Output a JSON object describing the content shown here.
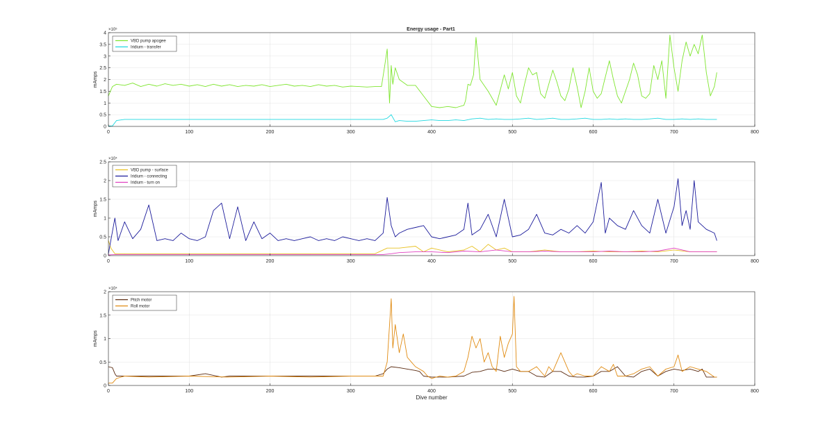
{
  "figure": {
    "title": "Energy usage - Part1"
  },
  "chart_data": [
    {
      "type": "line",
      "title": "Energy usage - Part1",
      "xlabel": "",
      "ylabel": "mAmps",
      "multiplier_label": "×10⁵",
      "xlim": [
        0,
        800
      ],
      "ylim": [
        0,
        4
      ],
      "xticks": [
        0,
        100,
        200,
        300,
        400,
        500,
        600,
        700,
        800
      ],
      "yticks": [
        0,
        0.5,
        1,
        1.5,
        2,
        2.5,
        3,
        3.5,
        4
      ],
      "ytick_labels": [
        "0",
        "0.5",
        "1",
        "1.5",
        "2",
        "2.5",
        "3",
        "3.5",
        "4"
      ],
      "grid": true,
      "legend": "top-left",
      "series": [
        {
          "name": "VBD pump apogee",
          "color": "#7ee52e",
          "x": [
            0,
            5,
            10,
            20,
            30,
            40,
            50,
            60,
            70,
            80,
            90,
            100,
            110,
            120,
            130,
            140,
            150,
            160,
            170,
            180,
            190,
            200,
            210,
            220,
            230,
            240,
            250,
            260,
            270,
            280,
            290,
            300,
            310,
            320,
            330,
            338,
            342,
            345,
            348,
            350,
            352,
            355,
            360,
            370,
            380,
            390,
            400,
            410,
            420,
            430,
            440,
            442,
            445,
            448,
            452,
            455,
            460,
            470,
            480,
            490,
            495,
            500,
            505,
            510,
            515,
            520,
            525,
            530,
            535,
            540,
            545,
            550,
            555,
            560,
            565,
            570,
            575,
            580,
            585,
            590,
            595,
            600,
            605,
            610,
            615,
            620,
            625,
            630,
            635,
            640,
            645,
            650,
            655,
            660,
            665,
            670,
            675,
            680,
            685,
            690,
            695,
            700,
            705,
            710,
            715,
            720,
            725,
            730,
            735,
            740,
            745,
            750,
            753
          ],
          "y": [
            1.3,
            1.7,
            1.8,
            1.75,
            1.85,
            1.7,
            1.8,
            1.72,
            1.82,
            1.75,
            1.8,
            1.72,
            1.78,
            1.7,
            1.8,
            1.72,
            1.78,
            1.7,
            1.75,
            1.72,
            1.78,
            1.7,
            1.75,
            1.8,
            1.72,
            1.75,
            1.7,
            1.78,
            1.72,
            1.75,
            1.68,
            1.72,
            1.7,
            1.68,
            1.7,
            1.7,
            2.6,
            3.3,
            1.0,
            2.6,
            1.8,
            2.5,
            2.0,
            1.75,
            1.75,
            1.3,
            0.85,
            0.8,
            0.85,
            0.8,
            0.9,
            1.1,
            1.8,
            1.75,
            2.2,
            3.8,
            2.0,
            1.5,
            0.9,
            2.2,
            1.6,
            2.3,
            1.3,
            1.0,
            1.8,
            2.5,
            2.2,
            2.3,
            1.4,
            1.2,
            1.8,
            2.4,
            1.9,
            1.3,
            1.1,
            1.6,
            2.5,
            1.7,
            0.8,
            1.5,
            2.5,
            1.5,
            1.2,
            1.4,
            2.1,
            2.8,
            2.0,
            1.3,
            1.0,
            1.5,
            2.0,
            2.7,
            2.2,
            1.3,
            1.2,
            1.4,
            2.6,
            2.0,
            2.8,
            1.2,
            3.9,
            2.5,
            1.5,
            2.8,
            3.6,
            3.0,
            3.5,
            3.1,
            3.9,
            2.3,
            1.3,
            1.7,
            2.3
          ]
        },
        {
          "name": "Iridium - transfer",
          "color": "#1fd8e0",
          "x": [
            0,
            5,
            10,
            20,
            30,
            40,
            50,
            60,
            70,
            80,
            90,
            100,
            110,
            120,
            130,
            140,
            150,
            160,
            170,
            180,
            190,
            200,
            210,
            220,
            230,
            240,
            250,
            260,
            270,
            280,
            290,
            300,
            310,
            320,
            330,
            340,
            345,
            350,
            355,
            360,
            370,
            380,
            390,
            400,
            410,
            420,
            430,
            440,
            450,
            460,
            470,
            480,
            490,
            500,
            510,
            520,
            530,
            540,
            550,
            560,
            570,
            580,
            590,
            600,
            610,
            620,
            630,
            640,
            650,
            660,
            670,
            680,
            690,
            700,
            710,
            720,
            730,
            740,
            750,
            753
          ],
          "y": [
            0.02,
            0.02,
            0.25,
            0.3,
            0.3,
            0.3,
            0.3,
            0.3,
            0.3,
            0.3,
            0.3,
            0.3,
            0.3,
            0.3,
            0.3,
            0.3,
            0.3,
            0.3,
            0.3,
            0.3,
            0.3,
            0.3,
            0.3,
            0.3,
            0.3,
            0.3,
            0.3,
            0.3,
            0.3,
            0.3,
            0.3,
            0.3,
            0.3,
            0.3,
            0.3,
            0.3,
            0.35,
            0.5,
            0.2,
            0.25,
            0.22,
            0.22,
            0.25,
            0.28,
            0.25,
            0.25,
            0.28,
            0.25,
            0.32,
            0.35,
            0.3,
            0.32,
            0.3,
            0.3,
            0.32,
            0.35,
            0.3,
            0.32,
            0.35,
            0.3,
            0.3,
            0.32,
            0.35,
            0.3,
            0.3,
            0.32,
            0.3,
            0.32,
            0.3,
            0.3,
            0.32,
            0.35,
            0.3,
            0.3,
            0.32,
            0.3,
            0.32,
            0.3,
            0.3,
            0.3
          ]
        }
      ]
    },
    {
      "type": "line",
      "title": "",
      "xlabel": "",
      "ylabel": "mAmps",
      "multiplier_label": "×10⁴",
      "xlim": [
        0,
        800
      ],
      "ylim": [
        0,
        2.5
      ],
      "xticks": [
        0,
        100,
        200,
        300,
        400,
        500,
        600,
        700,
        800
      ],
      "yticks": [
        0,
        0.5,
        1,
        1.5,
        2,
        2.5
      ],
      "ytick_labels": [
        "0",
        "0.5",
        "1",
        "1.5",
        "2",
        "2.5"
      ],
      "grid": true,
      "legend": "top-left",
      "series": [
        {
          "name": "VBD pump - surface",
          "color": "#e8c020",
          "x": [
            0,
            3,
            8,
            20,
            50,
            100,
            150,
            200,
            250,
            300,
            330,
            345,
            360,
            380,
            390,
            400,
            420,
            440,
            450,
            460,
            470,
            480,
            490,
            500,
            520,
            540,
            560,
            580,
            600,
            620,
            640,
            660,
            680,
            700,
            720,
            740,
            753
          ],
          "y": [
            0.4,
            0.2,
            0.05,
            0.05,
            0.05,
            0.05,
            0.05,
            0.05,
            0.05,
            0.05,
            0.05,
            0.2,
            0.2,
            0.25,
            0.1,
            0.2,
            0.1,
            0.15,
            0.25,
            0.1,
            0.3,
            0.15,
            0.2,
            0.1,
            0.1,
            0.15,
            0.1,
            0.1,
            0.12,
            0.1,
            0.1,
            0.12,
            0.1,
            0.15,
            0.1,
            0.1,
            0.1
          ]
        },
        {
          "name": "Iridium - connecting",
          "color": "#1a1a9a",
          "x": [
            0,
            8,
            12,
            20,
            30,
            40,
            50,
            60,
            70,
            80,
            90,
            100,
            110,
            120,
            130,
            140,
            150,
            160,
            170,
            180,
            190,
            200,
            210,
            220,
            230,
            240,
            250,
            260,
            270,
            280,
            290,
            300,
            310,
            320,
            330,
            340,
            345,
            350,
            355,
            360,
            370,
            380,
            390,
            400,
            410,
            420,
            430,
            440,
            445,
            450,
            460,
            470,
            480,
            490,
            500,
            510,
            520,
            530,
            540,
            550,
            560,
            570,
            580,
            590,
            600,
            610,
            615,
            620,
            630,
            640,
            650,
            660,
            670,
            680,
            690,
            700,
            705,
            710,
            715,
            720,
            725,
            730,
            740,
            750,
            753
          ],
          "y": [
            0.05,
            1.0,
            0.4,
            0.9,
            0.45,
            0.7,
            1.35,
            0.4,
            0.45,
            0.4,
            0.6,
            0.45,
            0.4,
            0.5,
            1.2,
            1.4,
            0.45,
            1.3,
            0.4,
            0.9,
            0.45,
            0.6,
            0.4,
            0.45,
            0.4,
            0.45,
            0.5,
            0.4,
            0.45,
            0.4,
            0.5,
            0.45,
            0.4,
            0.45,
            0.4,
            0.6,
            1.55,
            0.8,
            0.5,
            0.6,
            0.7,
            0.75,
            0.8,
            0.5,
            0.45,
            0.5,
            0.55,
            0.7,
            1.4,
            0.55,
            0.7,
            1.1,
            0.5,
            1.5,
            0.5,
            0.55,
            0.7,
            1.1,
            0.6,
            0.55,
            0.7,
            0.6,
            0.8,
            0.6,
            0.9,
            1.95,
            0.6,
            1.0,
            0.8,
            0.7,
            1.2,
            0.8,
            0.6,
            1.5,
            0.6,
            1.3,
            2.05,
            0.8,
            1.2,
            0.7,
            2.0,
            0.9,
            0.7,
            0.6,
            0.4
          ]
        },
        {
          "name": "Iridium - turn on",
          "color": "#e040c0",
          "x": [
            0,
            10,
            50,
            100,
            150,
            200,
            250,
            300,
            340,
            350,
            360,
            380,
            400,
            420,
            440,
            460,
            480,
            500,
            520,
            540,
            560,
            580,
            600,
            620,
            640,
            660,
            680,
            700,
            720,
            740,
            753
          ],
          "y": [
            0.02,
            0.03,
            0.03,
            0.03,
            0.03,
            0.03,
            0.03,
            0.03,
            0.03,
            0.05,
            0.08,
            0.1,
            0.1,
            0.08,
            0.12,
            0.1,
            0.15,
            0.1,
            0.1,
            0.12,
            0.1,
            0.1,
            0.1,
            0.12,
            0.1,
            0.1,
            0.12,
            0.2,
            0.1,
            0.1,
            0.1
          ]
        }
      ]
    },
    {
      "type": "line",
      "title": "",
      "xlabel": "Dive number",
      "ylabel": "mAmps",
      "multiplier_label": "×10⁴",
      "xlim": [
        0,
        800
      ],
      "ylim": [
        0,
        2
      ],
      "xticks": [
        0,
        100,
        200,
        300,
        400,
        500,
        600,
        700,
        800
      ],
      "yticks": [
        0,
        0.5,
        1,
        1.5,
        2
      ],
      "ytick_labels": [
        "0",
        "0.5",
        "1",
        "1.5",
        "2"
      ],
      "grid": true,
      "legend": "top-left",
      "series": [
        {
          "name": "Pitch motor",
          "color": "#5a2a10",
          "x": [
            0,
            5,
            8,
            10,
            20,
            50,
            100,
            120,
            140,
            150,
            200,
            250,
            300,
            330,
            340,
            345,
            350,
            360,
            370,
            380,
            385,
            390,
            400,
            420,
            440,
            450,
            460,
            470,
            480,
            490,
            500,
            510,
            520,
            530,
            540,
            550,
            560,
            570,
            580,
            590,
            600,
            610,
            620,
            630,
            640,
            650,
            660,
            670,
            680,
            690,
            700,
            710,
            720,
            730,
            735,
            740,
            750,
            753
          ],
          "y": [
            0.4,
            0.38,
            0.25,
            0.2,
            0.2,
            0.2,
            0.2,
            0.25,
            0.18,
            0.2,
            0.2,
            0.2,
            0.2,
            0.2,
            0.25,
            0.35,
            0.4,
            0.38,
            0.35,
            0.32,
            0.3,
            0.2,
            0.18,
            0.18,
            0.2,
            0.28,
            0.3,
            0.35,
            0.35,
            0.3,
            0.35,
            0.3,
            0.3,
            0.2,
            0.18,
            0.3,
            0.3,
            0.2,
            0.18,
            0.18,
            0.2,
            0.3,
            0.3,
            0.4,
            0.2,
            0.18,
            0.3,
            0.35,
            0.2,
            0.3,
            0.35,
            0.32,
            0.35,
            0.3,
            0.35,
            0.18,
            0.18,
            0.18
          ]
        },
        {
          "name": "Roll motor",
          "color": "#e08a10",
          "x": [
            0,
            5,
            10,
            20,
            50,
            100,
            150,
            200,
            250,
            300,
            330,
            340,
            345,
            350,
            352,
            355,
            360,
            365,
            370,
            375,
            380,
            385,
            390,
            395,
            400,
            410,
            420,
            430,
            440,
            445,
            450,
            455,
            460,
            465,
            470,
            475,
            480,
            485,
            490,
            495,
            500,
            502,
            505,
            510,
            520,
            530,
            540,
            545,
            550,
            560,
            570,
            575,
            580,
            590,
            600,
            610,
            620,
            625,
            630,
            640,
            650,
            660,
            670,
            680,
            690,
            700,
            705,
            710,
            720,
            730,
            740,
            750,
            753
          ],
          "y": [
            0.05,
            0.05,
            0.15,
            0.2,
            0.18,
            0.2,
            0.18,
            0.2,
            0.18,
            0.2,
            0.2,
            0.2,
            0.5,
            1.85,
            0.8,
            1.3,
            0.7,
            1.1,
            0.6,
            0.5,
            0.4,
            0.35,
            0.3,
            0.2,
            0.15,
            0.2,
            0.18,
            0.2,
            0.3,
            0.6,
            1.05,
            0.8,
            1.0,
            0.5,
            0.7,
            0.4,
            0.3,
            1.05,
            0.6,
            0.9,
            1.1,
            1.9,
            0.4,
            0.3,
            0.3,
            0.4,
            0.2,
            0.4,
            0.3,
            0.7,
            0.3,
            0.2,
            0.25,
            0.2,
            0.2,
            0.4,
            0.3,
            0.45,
            0.2,
            0.2,
            0.25,
            0.35,
            0.4,
            0.2,
            0.35,
            0.4,
            0.65,
            0.3,
            0.4,
            0.35,
            0.3,
            0.18,
            0.18
          ]
        }
      ]
    }
  ]
}
